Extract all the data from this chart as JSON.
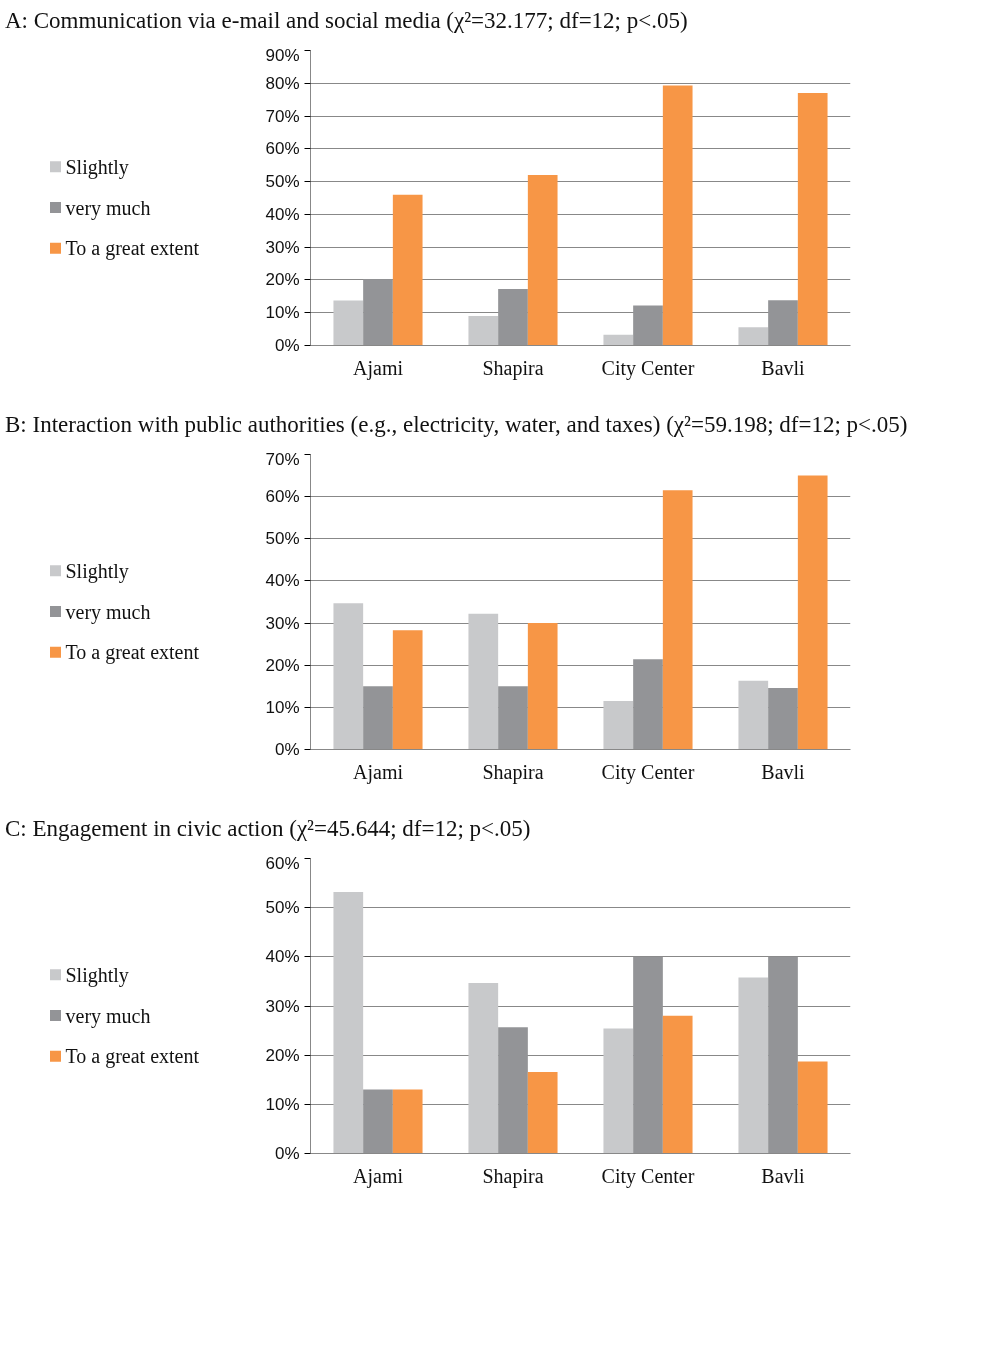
{
  "chart_data": [
    {
      "type": "bar",
      "title": "A: Communication via e-mail and social media (χ²=32.177; df=12; p<.05)",
      "categories": [
        "Ajami",
        "Shapira",
        "City Center",
        "Bavli"
      ],
      "series": [
        {
          "name": "Slightly",
          "color": "#c8c9cb",
          "values": [
            13.7,
            9,
            3.3,
            5.6
          ]
        },
        {
          "name": "very much",
          "color": "#939497",
          "values": [
            20.2,
            17.2,
            12.2,
            13.8
          ]
        },
        {
          "name": "To a great extent",
          "color": "#f79646",
          "values": [
            46,
            52,
            79.3,
            77
          ]
        }
      ],
      "ylim": [
        0,
        90
      ],
      "yticks": [
        {
          "value": 0,
          "label": "0%"
        },
        {
          "value": 10,
          "label": "10%"
        },
        {
          "value": 20,
          "label": "20%"
        },
        {
          "value": 30,
          "label": "30%"
        },
        {
          "value": 40,
          "label": "40%"
        },
        {
          "value": 50,
          "label": "50%"
        },
        {
          "value": 60,
          "label": "60%"
        },
        {
          "value": 70,
          "label": "70%"
        },
        {
          "value": 80,
          "label": "80%"
        },
        {
          "value": 90,
          "label": "90%"
        }
      ],
      "grid": "y",
      "legend": "left"
    },
    {
      "type": "bar",
      "title": "B: Interaction with public authorities (e.g., electricity, water, and taxes) (χ²=59.198; df=12; p<.05)",
      "categories": [
        "Ajami",
        "Shapira",
        "City Center",
        "Bavli"
      ],
      "series": [
        {
          "name": "Slightly",
          "color": "#c8c9cb",
          "values": [
            34.7,
            32.2,
            11.5,
            16.3
          ]
        },
        {
          "name": "very much",
          "color": "#939497",
          "values": [
            15,
            15,
            21.4,
            14.6
          ]
        },
        {
          "name": "To a great extent",
          "color": "#f79646",
          "values": [
            28.3,
            30,
            61.5,
            65
          ]
        }
      ],
      "ylim": [
        0,
        70
      ],
      "yticks": [
        {
          "value": 0,
          "label": "0%"
        },
        {
          "value": 10,
          "label": "10%"
        },
        {
          "value": 20,
          "label": "20%"
        },
        {
          "value": 30,
          "label": "30%"
        },
        {
          "value": 40,
          "label": "40%"
        },
        {
          "value": 50,
          "label": "50%"
        },
        {
          "value": 60,
          "label": "60%"
        },
        {
          "value": 70,
          "label": "70%"
        }
      ],
      "grid": "y",
      "legend": "left"
    },
    {
      "type": "bar",
      "title": "C: Engagement in civic action (χ²=45.644; df=12; p<.05)",
      "categories": [
        "Ajami",
        "Shapira",
        "City Center",
        "Bavli"
      ],
      "series": [
        {
          "name": "Slightly",
          "color": "#c8c9cb",
          "values": [
            53.2,
            34.7,
            25.4,
            35.8
          ]
        },
        {
          "name": "very much",
          "color": "#939497",
          "values": [
            13,
            25.7,
            40,
            40
          ]
        },
        {
          "name": "To a great extent",
          "color": "#f79646",
          "values": [
            13,
            16.6,
            28,
            18.7
          ]
        }
      ],
      "ylim": [
        0,
        60
      ],
      "yticks": [
        {
          "value": 0,
          "label": "0%"
        },
        {
          "value": 10,
          "label": "10%"
        },
        {
          "value": 20,
          "label": "20%"
        },
        {
          "value": 30,
          "label": "30%"
        },
        {
          "value": 40,
          "label": "40%"
        },
        {
          "value": 50,
          "label": "50%"
        },
        {
          "value": 60,
          "label": "60%"
        }
      ],
      "grid": "y",
      "legend": "left"
    }
  ]
}
